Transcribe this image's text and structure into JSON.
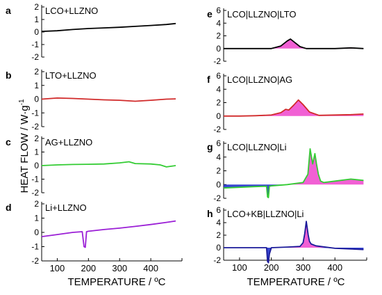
{
  "figure": {
    "ylabel": "HEAT FLOW / W·g",
    "ylabel_sup": "-1",
    "xlabel_left": "TEMPERATURE / ºC",
    "xlabel_right": "TEMPERATURE / ºC"
  },
  "chart_data": [
    {
      "panel": "a",
      "type": "line",
      "title": "LCO+LLZNO",
      "color": "#000000",
      "ylim": [
        -2,
        2
      ],
      "yticks": [
        -2,
        -1,
        0,
        1,
        2
      ],
      "xlim": [
        50,
        500
      ],
      "show_xticks": false,
      "x": [
        50,
        100,
        150,
        200,
        250,
        300,
        350,
        400,
        450,
        480
      ],
      "y": [
        0.05,
        0.1,
        0.2,
        0.28,
        0.33,
        0.38,
        0.45,
        0.52,
        0.6,
        0.68
      ]
    },
    {
      "panel": "b",
      "type": "line",
      "title": "LTO+LLZNO",
      "color": "#d12a2a",
      "ylim": [
        -2,
        2
      ],
      "yticks": [
        -2,
        -1,
        0,
        1,
        2
      ],
      "xlim": [
        50,
        500
      ],
      "show_xticks": false,
      "x": [
        50,
        100,
        150,
        200,
        250,
        300,
        350,
        400,
        450,
        480
      ],
      "y": [
        0.0,
        0.08,
        0.05,
        0.0,
        -0.05,
        -0.08,
        -0.15,
        -0.08,
        0.0,
        0.02
      ]
    },
    {
      "panel": "c",
      "type": "line",
      "title": "AG+LLZNO",
      "color": "#33cc33",
      "ylim": [
        -2,
        2
      ],
      "yticks": [
        -2,
        -1,
        0,
        1,
        2
      ],
      "xlim": [
        50,
        500
      ],
      "show_xticks": false,
      "x": [
        50,
        100,
        150,
        200,
        250,
        300,
        330,
        350,
        400,
        430,
        450,
        480
      ],
      "y": [
        0.0,
        0.05,
        0.08,
        0.1,
        0.12,
        0.2,
        0.28,
        0.15,
        0.12,
        0.05,
        -0.1,
        0.0
      ]
    },
    {
      "panel": "d",
      "type": "line",
      "title": "Li+LLZNO",
      "color": "#9b1fd6",
      "ylim": [
        -2,
        2
      ],
      "yticks": [
        -2,
        -1,
        0,
        1,
        2
      ],
      "xlim": [
        50,
        500
      ],
      "show_xticks": true,
      "x": [
        50,
        100,
        150,
        180,
        186,
        190,
        194,
        200,
        250,
        300,
        350,
        400,
        450,
        480
      ],
      "y": [
        -0.3,
        -0.15,
        0.0,
        0.05,
        -1.0,
        -1.05,
        0.05,
        0.08,
        0.2,
        0.3,
        0.42,
        0.55,
        0.7,
        0.8
      ]
    },
    {
      "panel": "e",
      "type": "line",
      "title": "LCO|LLZNO|LTO",
      "color": "#000000",
      "fill": "#ee44cc",
      "ylim": [
        -2,
        6
      ],
      "yticks": [
        -2,
        0,
        2,
        4,
        6
      ],
      "xlim": [
        50,
        500
      ],
      "show_xticks": false,
      "x": [
        50,
        100,
        150,
        200,
        230,
        250,
        260,
        270,
        290,
        310,
        350,
        400,
        450,
        490
      ],
      "y": [
        0.0,
        0.0,
        0.0,
        0.0,
        0.4,
        1.2,
        1.5,
        1.1,
        0.3,
        0.0,
        0.0,
        0.0,
        0.1,
        0.0
      ]
    },
    {
      "panel": "f",
      "type": "line",
      "title": "LCO|LLZNO|AG",
      "color": "#d12a2a",
      "fill": "#ee44cc",
      "ylim": [
        -2,
        6
      ],
      "yticks": [
        -2,
        0,
        2,
        4,
        6
      ],
      "xlim": [
        50,
        500
      ],
      "show_xticks": false,
      "x": [
        50,
        100,
        150,
        200,
        230,
        245,
        255,
        270,
        285,
        300,
        320,
        350,
        400,
        450,
        490
      ],
      "y": [
        0.0,
        0.0,
        0.05,
        0.15,
        0.5,
        1.0,
        0.9,
        1.6,
        2.4,
        1.7,
        0.6,
        0.1,
        0.15,
        0.2,
        0.3
      ]
    },
    {
      "panel": "g",
      "type": "line",
      "title": "LCO|LLZNO|Li",
      "color": "#33cc33",
      "fill": "#ee44cc",
      "fill_neg": "#2233cc",
      "ylim": [
        -2,
        6
      ],
      "yticks": [
        -2,
        0,
        2,
        4,
        6
      ],
      "xlim": [
        50,
        500
      ],
      "show_xticks": false,
      "x": [
        50,
        100,
        150,
        185,
        188,
        191,
        194,
        200,
        250,
        300,
        315,
        322,
        330,
        337,
        342,
        348,
        355,
        365,
        400,
        450,
        490
      ],
      "y": [
        -0.5,
        -0.4,
        -0.3,
        -0.25,
        -1.8,
        -1.9,
        -0.25,
        -0.2,
        0.0,
        0.3,
        1.5,
        5.2,
        3.0,
        4.5,
        3.0,
        1.5,
        0.5,
        0.3,
        0.5,
        0.8,
        0.6
      ]
    },
    {
      "panel": "h",
      "type": "line",
      "title": "LCO+KB|LLZNO|Li",
      "color": "#1a1a99",
      "fill": "#ee44cc",
      "fill_neg": "#2233cc",
      "ylim": [
        -2,
        6
      ],
      "yticks": [
        -2,
        0,
        2,
        4,
        6
      ],
      "xlim": [
        50,
        500
      ],
      "show_xticks": true,
      "x": [
        50,
        100,
        150,
        185,
        188,
        191,
        194,
        200,
        250,
        290,
        300,
        305,
        310,
        316,
        320,
        325,
        340,
        400,
        450,
        490
      ],
      "y": [
        0.0,
        0.0,
        0.0,
        0.0,
        -2.2,
        -2.4,
        -1.0,
        0.0,
        0.1,
        0.2,
        0.8,
        2.2,
        4.2,
        2.0,
        1.0,
        0.6,
        0.3,
        -0.1,
        -0.2,
        -0.3
      ]
    }
  ]
}
